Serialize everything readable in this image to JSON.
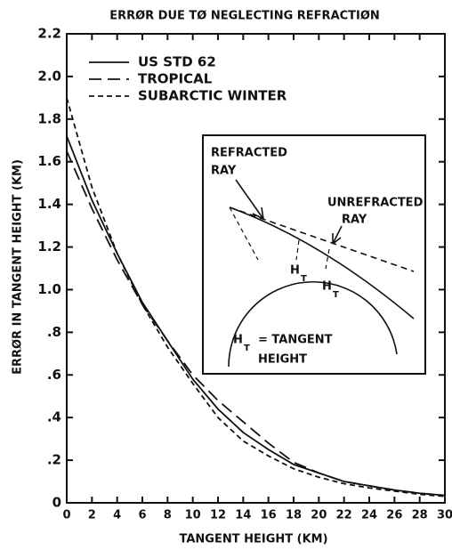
{
  "chart_data": {
    "type": "line",
    "title": "ERRØR DUE TØ NEGLECTING REFRACTIØN",
    "xlabel": "TANGENT HEIGHT (KM)",
    "ylabel": "ERRØR IN TANGENT HEIGHT (KM)",
    "x": [
      0,
      2,
      4,
      6,
      8,
      10,
      12,
      14,
      16,
      18,
      20,
      22,
      24,
      26,
      28,
      30
    ],
    "series": [
      {
        "name": "US STD 62",
        "color": "#111111",
        "dash": "solid",
        "values": [
          1.72,
          1.42,
          1.17,
          0.94,
          0.76,
          0.58,
          0.44,
          0.33,
          0.25,
          0.18,
          0.14,
          0.1,
          0.08,
          0.06,
          0.045,
          0.035
        ]
      },
      {
        "name": "TROPICAL",
        "color": "#111111",
        "dash": "long-dash",
        "values": [
          1.65,
          1.38,
          1.14,
          0.93,
          0.76,
          0.6,
          0.48,
          0.38,
          0.28,
          0.19,
          0.14,
          0.1,
          0.08,
          0.06,
          0.045,
          0.035
        ]
      },
      {
        "name": "SUBARCTIC WINTER",
        "color": "#111111",
        "dash": "short-dash",
        "values": [
          1.9,
          1.48,
          1.17,
          0.93,
          0.73,
          0.56,
          0.4,
          0.29,
          0.22,
          0.16,
          0.12,
          0.09,
          0.07,
          0.055,
          0.04,
          0.03
        ]
      }
    ],
    "xlim": [
      0,
      30
    ],
    "xticks": [
      0,
      2,
      4,
      6,
      8,
      10,
      12,
      14,
      16,
      18,
      20,
      22,
      24,
      26,
      28,
      30
    ],
    "ylim": [
      0,
      2.2
    ],
    "yticks": [
      0,
      {
        "value": 0.2,
        "label": ".2"
      },
      {
        "value": 0.4,
        "label": ".4"
      },
      {
        "value": 0.6,
        "label": ".6"
      },
      {
        "value": 0.8,
        "label": ".8"
      },
      {
        "value": 1.0,
        "label": "1.0"
      },
      1.2,
      1.4,
      1.6,
      1.8,
      {
        "value": 2.0,
        "label": "2.0"
      },
      2.2
    ],
    "grid": false,
    "legend": "upper-left",
    "inset": {
      "refracted": [
        "REFRACTED",
        "RAY"
      ],
      "unrefracted": [
        "UNREFRACTED",
        "RAY"
      ],
      "heights": [
        {
          "main": "H",
          "sub": "T"
        },
        {
          "main": "H",
          "sub": "T"
        }
      ],
      "definition": {
        "main": "H",
        "sub": "T",
        "text": "= TANGENT",
        "line2": "HEIGHT"
      }
    }
  }
}
